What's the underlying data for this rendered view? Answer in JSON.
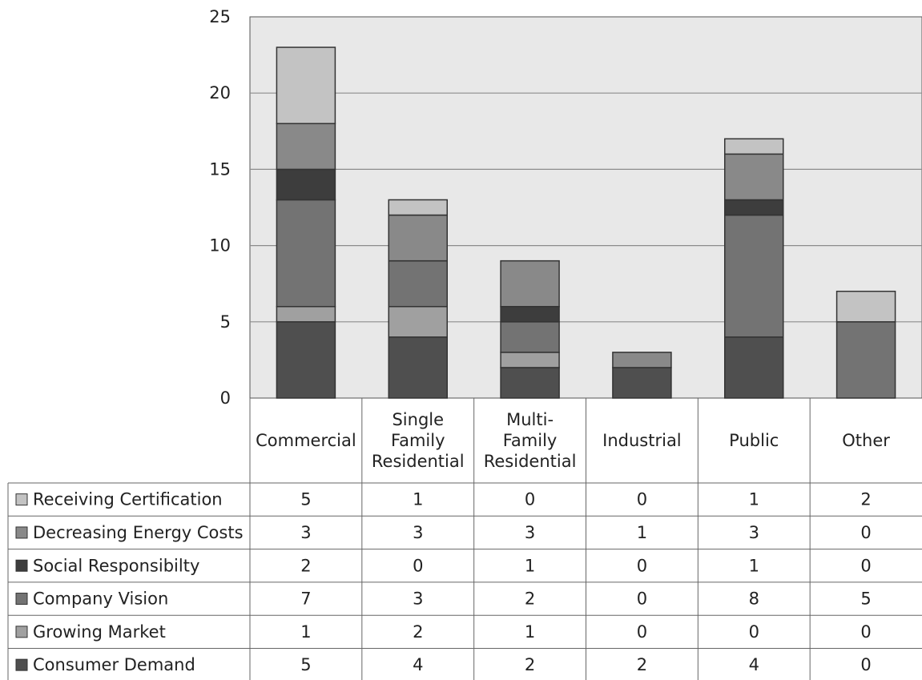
{
  "chart_data": {
    "type": "bar",
    "stacked": true,
    "title": "",
    "xlabel": "",
    "ylabel": "",
    "ylim": [
      0,
      25
    ],
    "yticks": [
      0,
      5,
      10,
      15,
      20,
      25
    ],
    "grid": true,
    "legend_placement": "data-table-left",
    "categories": [
      {
        "lines": [
          "Commercial"
        ]
      },
      {
        "lines": [
          "Single",
          "Family",
          "Residential"
        ]
      },
      {
        "lines": [
          "Multi-",
          "Family",
          "Residential"
        ]
      },
      {
        "lines": [
          "Industrial"
        ]
      },
      {
        "lines": [
          "Public"
        ]
      },
      {
        "lines": [
          "Other"
        ]
      }
    ],
    "series": [
      {
        "name": "Consumer Demand",
        "color": "#4f4f4f",
        "values": [
          5,
          4,
          2,
          2,
          4,
          0
        ]
      },
      {
        "name": "Growing Market",
        "color": "#a0a0a0",
        "values": [
          1,
          2,
          1,
          0,
          0,
          0
        ]
      },
      {
        "name": "Company Vision",
        "color": "#737373",
        "values": [
          7,
          3,
          2,
          0,
          8,
          5
        ]
      },
      {
        "name": "Social Responsibilty",
        "color": "#3d3d3d",
        "values": [
          2,
          0,
          1,
          0,
          1,
          0
        ]
      },
      {
        "name": "Decreasing Energy Costs",
        "color": "#898989",
        "values": [
          3,
          3,
          3,
          1,
          3,
          0
        ]
      },
      {
        "name": "Receiving Certification",
        "color": "#c3c3c3",
        "values": [
          5,
          1,
          0,
          0,
          1,
          2
        ]
      }
    ],
    "table_row_order": [
      "Receiving Certification",
      "Decreasing Energy Costs",
      "Social Responsibilty",
      "Company Vision",
      "Growing Market",
      "Consumer Demand"
    ],
    "colors": {
      "plot_bg": "#e8e8e8",
      "grid": "#8c8c8c",
      "border": "#555555",
      "text": "#222222"
    }
  }
}
